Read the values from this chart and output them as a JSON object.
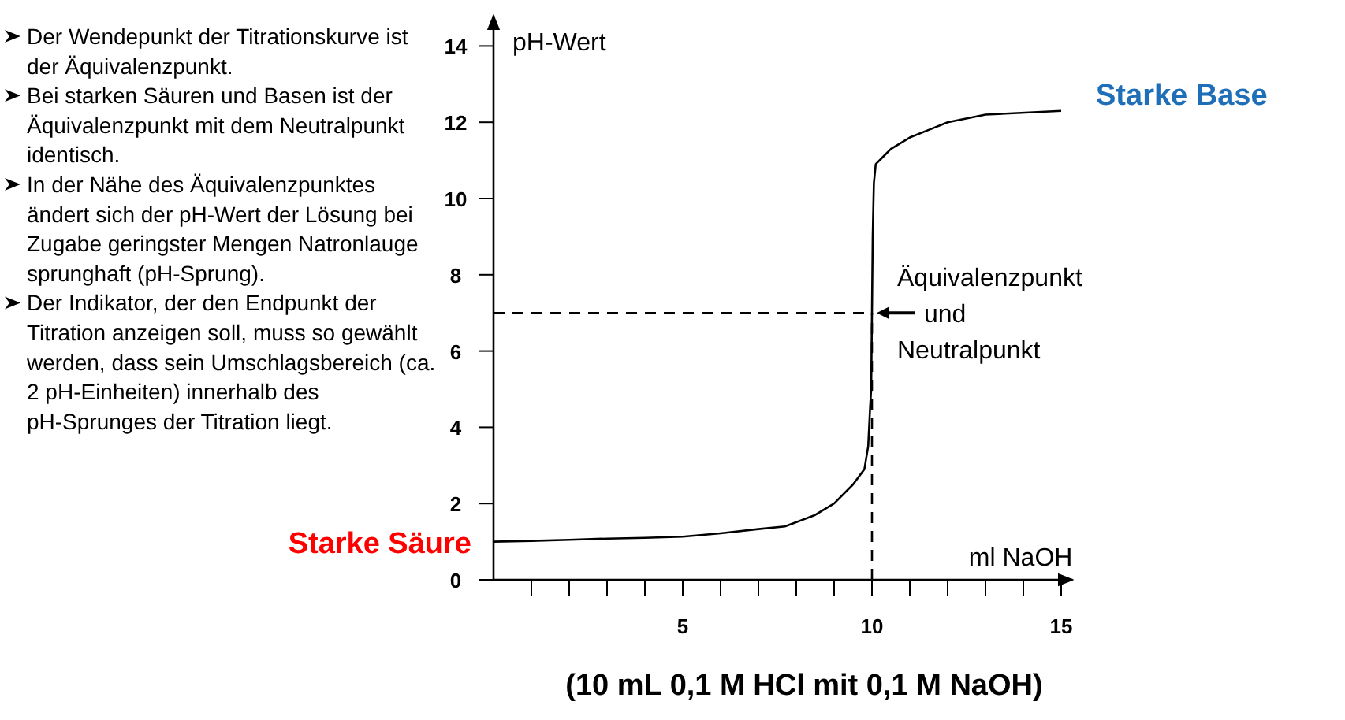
{
  "chart_data": {
    "type": "line",
    "title": "(10 mL 0,1 M HCl mit 0,1 M NaOH)",
    "xlabel": "ml NaOH",
    "ylabel": "pH-Wert",
    "xlim": [
      0,
      15.3
    ],
    "ylim": [
      0,
      14.8
    ],
    "xticks": [
      {
        "value": 1,
        "label": null
      },
      {
        "value": 2,
        "label": null
      },
      {
        "value": 3,
        "label": null
      },
      {
        "value": 4,
        "label": null
      },
      5,
      {
        "value": 6,
        "label": null
      },
      {
        "value": 7,
        "label": null
      },
      {
        "value": 8,
        "label": null
      },
      {
        "value": 9,
        "label": null
      },
      10,
      {
        "value": 11,
        "label": null
      },
      {
        "value": 12,
        "label": null
      },
      {
        "value": 13,
        "label": null
      },
      {
        "value": 14,
        "label": null
      },
      15
    ],
    "yticks": [
      0,
      2,
      4,
      6,
      8,
      10,
      12,
      14
    ],
    "grid": false,
    "marker": "none",
    "line_style": "solid",
    "series": [
      {
        "color": "#000000",
        "x": [
          0,
          1,
          2,
          3,
          4,
          5,
          6,
          7,
          7.7,
          8.5,
          9,
          9.5,
          9.8,
          9.9,
          9.95,
          9.98,
          10,
          10.02,
          10.05,
          10.1,
          10.3,
          10.5,
          11,
          11.5,
          12,
          13,
          15
        ],
        "values": [
          1,
          1.02,
          1.05,
          1.08,
          1.1,
          1.13,
          1.22,
          1.33,
          1.4,
          1.7,
          2,
          2.5,
          2.9,
          3.5,
          4.5,
          5,
          7,
          9,
          10.4,
          10.9,
          11.1,
          11.3,
          11.6,
          11.8,
          12,
          12.2,
          12.3
        ]
      },
      {
        "color": "#000000",
        "line_style": "dashed",
        "x": [
          0,
          10
        ],
        "values": [
          7,
          7
        ]
      },
      {
        "color": "#000000",
        "line_style": "dashed",
        "x": [
          10,
          10
        ],
        "values": [
          0,
          7
        ]
      }
    ],
    "annotations": [
      "Der Wendepunkt der Titrationskurve ist der Äquivalenzpunkt.",
      "Bei starken Säuren und Basen ist der Äquivalenzpunkt mit dem Neutralpunkt identisch.",
      "In der Nähe des Äquivalenzpunktes ändert sich der pH-Wert der Lösung bei Zugabe geringster Mengen Natronlauge sprunghaft (pH-Sprung).",
      "Der Indikator, der den Endpunkt der Titration anzeigen soll, muss so gewählt werden, dass sein Umschlagsbereich (ca. 2 pH-Einheiten) innerhalb des pH-Sprunges der Titration liegt.",
      {
        "text": "Starke Säure",
        "x": 0,
        "y": 1
      },
      {
        "text": "Starke Base",
        "x": 15,
        "y": 12.3
      },
      {
        "text": "Äquivalenzpunkt\nund\nNeutralpunkt",
        "x": 10,
        "y": 7
      }
    ]
  }
}
